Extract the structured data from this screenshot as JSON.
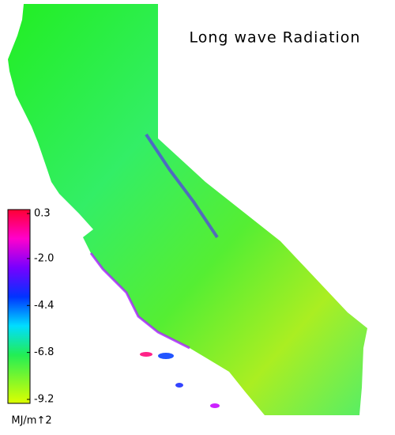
{
  "map": {
    "title": "Long wave Radiation",
    "colorbar": {
      "lim": [
        -9.2,
        0.3
      ],
      "ticks": [
        0.3,
        {
          "value": -2,
          "label": "-2.0"
        },
        -4.4,
        -6.8,
        -9.2
      ],
      "unit": "MJ/m↑2"
    }
  }
}
